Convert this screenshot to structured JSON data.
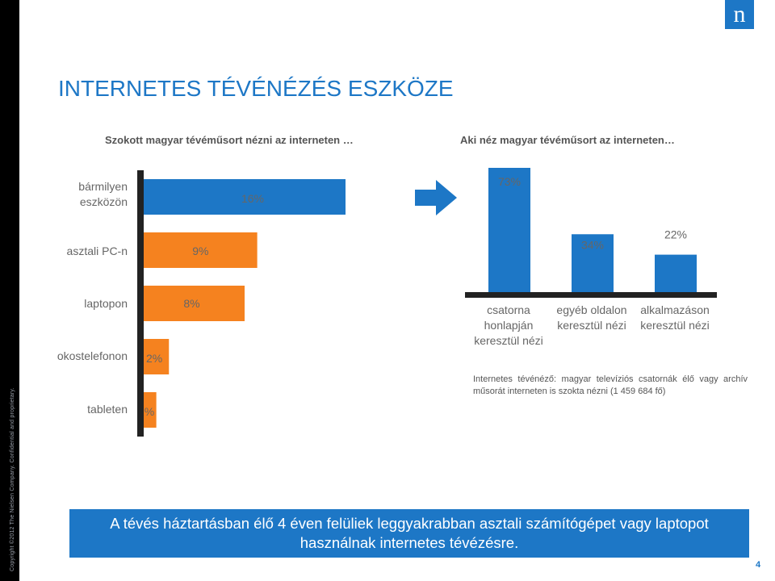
{
  "slide": {
    "title": "INTERNETES TÉVÉNÉZÉS ESZKÖZE",
    "subtitle_left": "Szokott magyar tévéműsort nézni az interneten …",
    "subtitle_right": "Aki néz magyar tévéműsort az interneten…",
    "logo": "n",
    "copyright": "Copyright ©2012 The Nielsen Company. Confidential and proprietary.",
    "footnote": "Internetes tévénéző: magyar televíziós csatornák élő vagy archív műsorát interneten is szokta nézni (1 459 684 fő)",
    "banner": "A tévés háztartásban élő 4 éven felüliek leggyakrabban asztali számítógépet vagy laptopot használnak internetes tévézésre.",
    "page_number": "4"
  },
  "colors": {
    "blue": "#1d77c6",
    "orange": "#f5821f",
    "axis": "#222222",
    "label": "#666666"
  },
  "icons": {
    "arrow": "right-arrow-icon",
    "logo": "nielsen-logo"
  },
  "chart_data": [
    {
      "type": "bar",
      "orientation": "horizontal",
      "categories": [
        [
          "bármilyen",
          "eszközön"
        ],
        [
          "asztali PC-n"
        ],
        [
          "laptopon"
        ],
        [
          "okostelefonon"
        ],
        [
          "tableten"
        ]
      ],
      "values": [
        16,
        9,
        8,
        2,
        1
      ],
      "value_labels": [
        "16%",
        "9%",
        "8%",
        "2%",
        "1%"
      ],
      "bar_colors": [
        "#1d77c6",
        "#f5821f",
        "#f5821f",
        "#f5821f",
        "#f5821f"
      ],
      "xlim": [
        0,
        16
      ],
      "grid": false,
      "legend": "none"
    },
    {
      "type": "bar",
      "orientation": "vertical",
      "categories": [
        [
          "csatorna",
          "honlapján",
          "keresztül nézi"
        ],
        [
          "egyéb oldalon",
          "keresztül nézi"
        ],
        [
          "alkalmazáson",
          "keresztül nézi"
        ]
      ],
      "values": [
        73,
        34,
        22
      ],
      "value_labels": [
        "73%",
        "34%",
        "22%"
      ],
      "ylim": [
        0,
        73
      ],
      "grid": false,
      "legend": "none"
    }
  ]
}
